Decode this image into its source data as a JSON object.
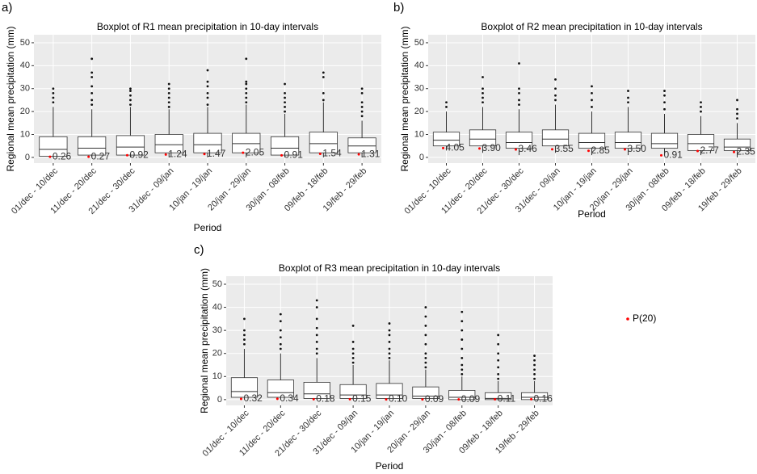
{
  "chart_data": [
    {
      "type": "boxplot",
      "panel_label": "a)",
      "title": "Boxplot of R1 mean precipitation in 10-day intervals",
      "x_label": "Period",
      "y_label": "Regional mean precipitation (mm)",
      "categories": [
        "01/dec - 10/dec",
        "11/dec - 20/dec",
        "21/dec - 30/dec",
        "31/dec - 09/jan",
        "10/jan - 19/jan",
        "20/jan - 29/jan",
        "30/jan - 08/feb",
        "09/feb - 18/feb",
        "19/feb - 29/feb"
      ],
      "ylim": [
        -2.5,
        53.5
      ],
      "yticks": [
        0,
        10,
        20,
        30,
        40,
        50
      ],
      "grid": true,
      "box_color": "#333333",
      "box_fill": "#ffffff",
      "boxes": [
        {
          "whisker_low": 0,
          "q1": 0.5,
          "median": 3.5,
          "q3": 9,
          "whisker_high": 22,
          "outliers": [
            24,
            26,
            28,
            30
          ]
        },
        {
          "whisker_low": 0,
          "q1": 1,
          "median": 4,
          "q3": 9,
          "whisker_high": 21,
          "outliers": [
            23,
            25,
            28,
            31,
            35,
            37,
            43
          ]
        },
        {
          "whisker_low": 0,
          "q1": 1,
          "median": 4.5,
          "q3": 9.5,
          "whisker_high": 22,
          "outliers": [
            23,
            25,
            27,
            29,
            30
          ]
        },
        {
          "whisker_low": 0,
          "q1": 2,
          "median": 5.5,
          "q3": 10,
          "whisker_high": 21,
          "outliers": [
            22,
            24,
            26,
            28,
            30,
            32
          ]
        },
        {
          "whisker_low": 0,
          "q1": 2,
          "median": 5.5,
          "q3": 10.5,
          "whisker_high": 22,
          "outliers": [
            23,
            26,
            28,
            31,
            33,
            38
          ]
        },
        {
          "whisker_low": 0,
          "q1": 2,
          "median": 6,
          "q3": 10.5,
          "whisker_high": 23,
          "outliers": [
            24,
            26,
            28,
            30,
            32,
            33,
            43
          ]
        },
        {
          "whisker_low": 0,
          "q1": 1,
          "median": 4,
          "q3": 9,
          "whisker_high": 19,
          "outliers": [
            20,
            22,
            24,
            26,
            28,
            32
          ]
        },
        {
          "whisker_low": 0,
          "q1": 2,
          "median": 6,
          "q3": 11,
          "whisker_high": 24,
          "outliers": [
            25,
            28,
            35,
            37
          ]
        },
        {
          "whisker_low": 0,
          "q1": 2,
          "median": 5,
          "q3": 8.5,
          "whisker_high": 16,
          "outliers": [
            18,
            20,
            22,
            24,
            28,
            30
          ]
        }
      ],
      "p20": {
        "color": "#ff0000",
        "values": [
          0.26,
          0.27,
          0.92,
          1.24,
          1.47,
          2.05,
          0.91,
          1.54,
          1.31
        ],
        "value_labels": [
          "0.26",
          "0.27",
          "0.92",
          "1.24",
          "1.47",
          "2.05",
          "0.91",
          "1.54",
          "1.31"
        ]
      }
    },
    {
      "type": "boxplot",
      "panel_label": "b)",
      "title": "Boxplot of R2 mean precipitation in 10-day intervals",
      "x_label": "Period",
      "y_label": "Regional mean precipitation (mm)",
      "categories": [
        "01/dec - 10/dec",
        "11/dec - 20/dec",
        "21/dec - 30/dec",
        "31/dec - 09/jan",
        "10/jan - 19/jan",
        "20/jan - 29/jan",
        "30/jan - 08/feb",
        "09/feb - 18/feb",
        "19/feb - 29/feb"
      ],
      "ylim": [
        -2.5,
        53.5
      ],
      "yticks": [
        0,
        10,
        20,
        30,
        40,
        50
      ],
      "grid": true,
      "box_color": "#333333",
      "box_fill": "#ffffff",
      "boxes": [
        {
          "whisker_low": 3,
          "q1": 5,
          "median": 7.5,
          "q3": 11,
          "whisker_high": 20,
          "outliers": [
            22,
            24
          ]
        },
        {
          "whisker_low": 2,
          "q1": 5,
          "median": 8,
          "q3": 12,
          "whisker_high": 22,
          "outliers": [
            24,
            26,
            28,
            30,
            35
          ]
        },
        {
          "whisker_low": 1,
          "q1": 4,
          "median": 6.5,
          "q3": 11,
          "whisker_high": 21,
          "outliers": [
            23,
            25,
            28,
            30,
            41
          ]
        },
        {
          "whisker_low": 2,
          "q1": 5,
          "median": 8,
          "q3": 12,
          "whisker_high": 23,
          "outliers": [
            25,
            27,
            30,
            34
          ]
        },
        {
          "whisker_low": 1,
          "q1": 4,
          "median": 6.5,
          "q3": 10.5,
          "whisker_high": 20,
          "outliers": [
            22,
            25,
            28,
            31
          ]
        },
        {
          "whisker_low": 1,
          "q1": 4,
          "median": 6.5,
          "q3": 11,
          "whisker_high": 22,
          "outliers": [
            24,
            26,
            29
          ]
        },
        {
          "whisker_low": 1,
          "q1": 4,
          "median": 6,
          "q3": 10.5,
          "whisker_high": 19,
          "outliers": [
            21,
            24,
            27,
            29
          ]
        },
        {
          "whisker_low": 1,
          "q1": 3,
          "median": 6,
          "q3": 10,
          "whisker_high": 18,
          "outliers": [
            20,
            22,
            24
          ]
        },
        {
          "whisker_low": 0,
          "q1": 3,
          "median": 4.5,
          "q3": 8,
          "whisker_high": 15,
          "outliers": [
            17,
            19,
            21,
            25
          ]
        }
      ],
      "p20": {
        "color": "#ff0000",
        "values": [
          4.05,
          3.9,
          3.46,
          3.55,
          2.85,
          3.5,
          0.91,
          2.77,
          2.35
        ],
        "value_labels": [
          "4.05",
          "3.90",
          "3.46",
          "3.55",
          "2.85",
          "3.50",
          "0.91",
          "2.77",
          "2.35"
        ]
      }
    },
    {
      "type": "boxplot",
      "panel_label": "c)",
      "title": "Boxplot of R3 mean precipitation in 10-day intervals",
      "x_label": "Period",
      "y_label": "Regional mean precipitation (mm)",
      "categories": [
        "01/dec - 10/dec",
        "11/dec - 20/dec",
        "21/dec - 30/dec",
        "31/dec - 09/jan",
        "10/jan - 19/jan",
        "20/jan - 29/jan",
        "30/jan - 08/feb",
        "09/feb - 18/feb",
        "19/feb - 29/feb"
      ],
      "ylim": [
        -2.5,
        53.5
      ],
      "yticks": [
        0,
        10,
        20,
        30,
        40,
        50
      ],
      "grid": true,
      "box_color": "#333333",
      "box_fill": "#ffffff",
      "boxes": [
        {
          "whisker_low": 0,
          "q1": 1,
          "median": 3.5,
          "q3": 9.5,
          "whisker_high": 22,
          "outliers": [
            24,
            26,
            28,
            30,
            35
          ]
        },
        {
          "whisker_low": 0,
          "q1": 1,
          "median": 3,
          "q3": 8.5,
          "whisker_high": 20,
          "outliers": [
            22,
            24,
            27,
            30,
            34,
            37
          ]
        },
        {
          "whisker_low": 0,
          "q1": 0.5,
          "median": 2.5,
          "q3": 7.5,
          "whisker_high": 18,
          "outliers": [
            20,
            22,
            25,
            28,
            31,
            35,
            40,
            43
          ]
        },
        {
          "whisker_low": 0,
          "q1": 0.5,
          "median": 2,
          "q3": 6.5,
          "whisker_high": 15,
          "outliers": [
            16,
            18,
            20,
            22,
            25,
            32
          ]
        },
        {
          "whisker_low": 0,
          "q1": 0.5,
          "median": 2,
          "q3": 7,
          "whisker_high": 17,
          "outliers": [
            18,
            20,
            22,
            25,
            28,
            30,
            33
          ]
        },
        {
          "whisker_low": 0,
          "q1": 0.5,
          "median": 1.5,
          "q3": 5.5,
          "whisker_high": 13,
          "outliers": [
            14,
            16,
            18,
            20,
            24,
            28,
            32,
            36,
            40
          ]
        },
        {
          "whisker_low": 0,
          "q1": 0,
          "median": 1,
          "q3": 4,
          "whisker_high": 10,
          "outliers": [
            11,
            13,
            15,
            18,
            22,
            26,
            30,
            34,
            38
          ]
        },
        {
          "whisker_low": 0,
          "q1": 0,
          "median": 0.5,
          "q3": 3,
          "whisker_high": 8,
          "outliers": [
            9,
            11,
            14,
            17,
            20,
            24,
            28
          ]
        },
        {
          "whisker_low": 0,
          "q1": 0,
          "median": 1,
          "q3": 3,
          "whisker_high": 8,
          "outliers": [
            9,
            11,
            13,
            15,
            17,
            19
          ]
        }
      ],
      "p20": {
        "name": "P(20)",
        "color": "#ff0000",
        "values": [
          0.32,
          0.34,
          0.18,
          0.15,
          0.1,
          0.09,
          0.09,
          0.11,
          0.16
        ],
        "value_labels": [
          "0.32",
          "0.34",
          "0.18",
          "0.15",
          "0.10",
          "0.09",
          "0.09",
          "0.11",
          "0.16"
        ]
      },
      "legend": true
    }
  ]
}
